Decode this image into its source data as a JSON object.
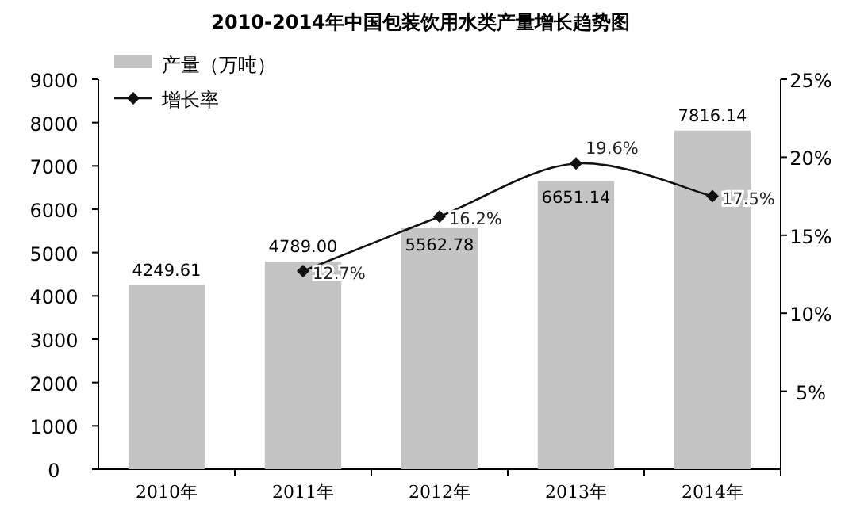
{
  "chart_data": {
    "type": "bar",
    "title": "2010-2014年中国包装饮用水类产量增长趋势图",
    "categories": [
      "2010年",
      "2011年",
      "2012年",
      "2013年",
      "2014年"
    ],
    "series": [
      {
        "name": "产量（万吨）",
        "color": "#c4c4c4",
        "values": [
          4249.61,
          4789.0,
          5562.78,
          6651.14,
          7816.14
        ],
        "value_labels": [
          "4249.61",
          "4789.00",
          "5562.78",
          "6651.14",
          "7816.14"
        ]
      },
      {
        "name": "增长率",
        "type": "line",
        "axis": "y2",
        "color": "#111111",
        "marker": "diamond",
        "values": [
          null,
          12.7,
          16.2,
          19.6,
          17.5
        ],
        "value_labels": [
          null,
          "12.7%",
          "16.2%",
          "19.6%",
          "17.5%"
        ]
      }
    ],
    "ylim": [
      0,
      9000
    ],
    "yticks": [
      0,
      1000,
      2000,
      3000,
      4000,
      5000,
      6000,
      7000,
      8000,
      9000
    ],
    "y2lim": [
      0,
      25
    ],
    "y2ticks": [
      {
        "value": 5,
        "label": "5%"
      },
      {
        "value": 10,
        "label": "10%"
      },
      {
        "value": 15,
        "label": "15%"
      },
      {
        "value": 20,
        "label": "20%"
      },
      {
        "value": 25,
        "label": "25%"
      }
    ],
    "legend": "top left",
    "grid": false
  }
}
